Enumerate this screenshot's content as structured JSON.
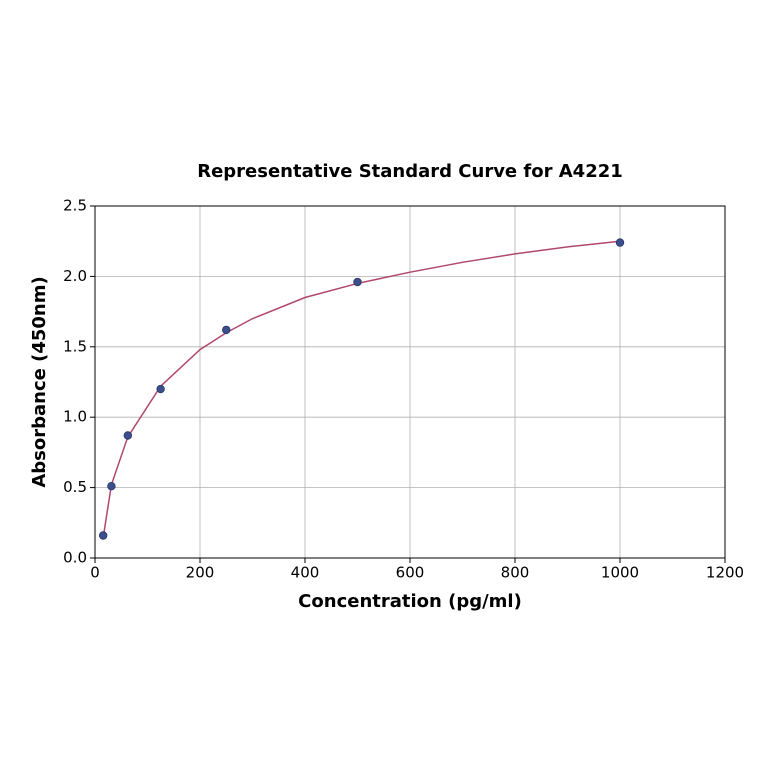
{
  "chart_data": {
    "type": "scatter",
    "title": "Representative Standard Curve for A4221",
    "x_label": "Concentration (pg/ml)",
    "y_label": "Absorbance (450nm)",
    "xlim": [
      0,
      1200
    ],
    "ylim": [
      0,
      2.5
    ],
    "xticks": [
      0,
      200,
      400,
      600,
      800,
      1000,
      1200
    ],
    "yticks": [
      {
        "value": 0,
        "label": "0.0"
      },
      0.5,
      {
        "value": 1,
        "label": "1.0"
      },
      1.5,
      {
        "value": 2,
        "label": "2.0"
      },
      2.5
    ],
    "grid": true,
    "series": [
      {
        "type": "line",
        "color": "#b0476a",
        "x": [
          15,
          31.25,
          62.5,
          125,
          200,
          250,
          300,
          400,
          500,
          600,
          700,
          800,
          900,
          1000
        ],
        "values": [
          0.13,
          0.52,
          0.86,
          1.22,
          1.48,
          1.6,
          1.7,
          1.85,
          1.95,
          2.03,
          2.1,
          2.16,
          2.21,
          2.25
        ]
      },
      {
        "type": "scatter",
        "color": "#3b4f8c",
        "x": [
          15.6,
          31.25,
          62.5,
          125,
          250,
          500,
          1000
        ],
        "values": [
          0.16,
          0.51,
          0.87,
          1.2,
          1.62,
          1.96,
          2.24
        ]
      }
    ]
  }
}
